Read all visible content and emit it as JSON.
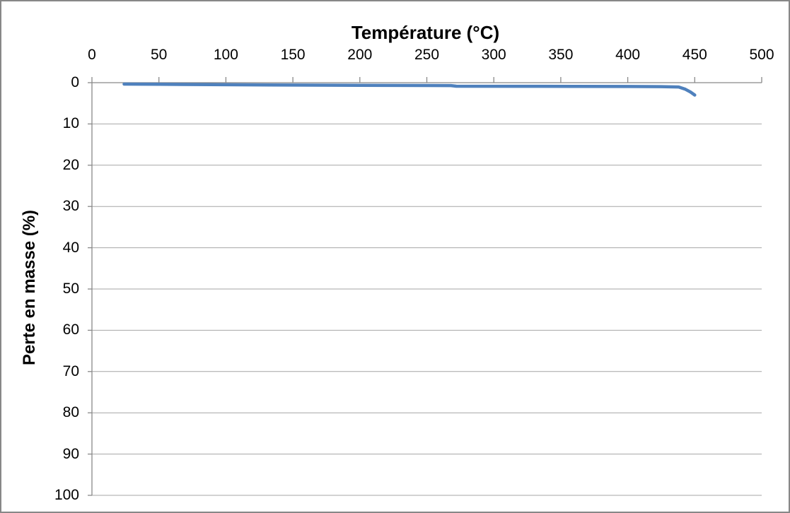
{
  "chart_data": {
    "type": "line",
    "title": "Température (°C)",
    "xlabel": "Température (°C)",
    "ylabel": "Perte en masse (%)",
    "legend": "none",
    "grid": {
      "horizontal": true,
      "vertical": false
    },
    "x_axis": {
      "min": 0,
      "max": 500,
      "position": "top",
      "tick_step": 50,
      "ticks": [
        0,
        50,
        100,
        150,
        200,
        250,
        300,
        350,
        400,
        450,
        500
      ]
    },
    "y_axis": {
      "min": 0,
      "max": 100,
      "direction": "increasing-downward",
      "tick_step": 10,
      "ticks": [
        0,
        10,
        20,
        30,
        40,
        50,
        60,
        70,
        80,
        90,
        100
      ]
    },
    "series": [
      {
        "name": "Perte en masse (%)",
        "color": "#4F81BD",
        "stroke_width": 4.5,
        "points": [
          [
            24,
            0.35
          ],
          [
            50,
            0.4
          ],
          [
            100,
            0.5
          ],
          [
            150,
            0.58
          ],
          [
            200,
            0.63
          ],
          [
            250,
            0.68
          ],
          [
            268,
            0.7
          ],
          [
            272,
            0.85
          ],
          [
            320,
            0.88
          ],
          [
            360,
            0.9
          ],
          [
            400,
            0.93
          ],
          [
            425,
            0.96
          ],
          [
            438,
            1.05
          ],
          [
            443,
            1.6
          ],
          [
            447,
            2.3
          ],
          [
            450,
            3.0
          ]
        ]
      }
    ]
  },
  "colors": {
    "background": "#FFFFFF",
    "gridline": "#A6A6A6",
    "axis": "#898989",
    "tick_label": "#000000",
    "frame_border": "#878787"
  }
}
